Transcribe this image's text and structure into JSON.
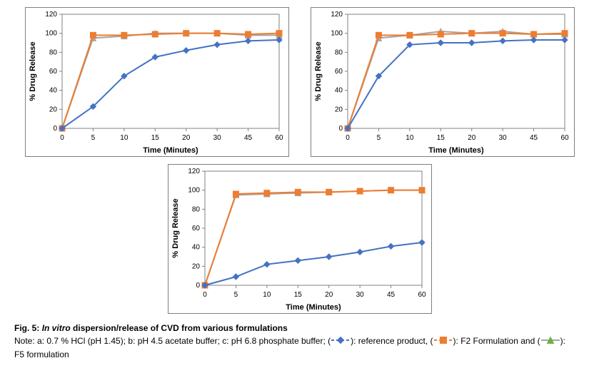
{
  "global": {
    "xlabel": "Time (Minutes)",
    "ylabel": "% Drug Release",
    "xlabel_fontsize": 11,
    "ylabel_fontsize": 11,
    "xlabel_fontweight": "bold",
    "ylabel_fontweight": "bold",
    "tick_fontsize": 10,
    "bg_color": "#ffffff",
    "plot_border_color": "#808080",
    "outer_border_color": "#7f7f7f",
    "grid_on": false,
    "x_ticks": [
      0,
      5,
      10,
      15,
      20,
      30,
      45,
      60
    ],
    "y_ticks": [
      0,
      20,
      40,
      60,
      80,
      100,
      120
    ],
    "ylim": [
      0,
      120
    ],
    "xlim": [
      0,
      60
    ],
    "x_categorical": true,
    "series_colors": {
      "reference": "#4472c4",
      "f2": "#ed7d31",
      "f5": "#a5a5a5"
    },
    "marker_styles": {
      "reference": "diamond",
      "f2": "square",
      "f5": "triangle"
    },
    "marker_size": 8,
    "line_width": 2
  },
  "charts": [
    {
      "id": "a",
      "series": {
        "reference": {
          "x": [
            0,
            5,
            10,
            15,
            20,
            30,
            45,
            60
          ],
          "y": [
            0,
            23,
            55,
            75,
            82,
            88,
            92,
            93
          ]
        },
        "f2": {
          "x": [
            0,
            5,
            10,
            15,
            20,
            30,
            45,
            60
          ],
          "y": [
            0,
            98,
            98,
            99,
            100,
            100,
            99,
            100
          ]
        },
        "f5": {
          "x": [
            0,
            5,
            10,
            15,
            20,
            30,
            45,
            60
          ],
          "y": [
            0,
            95,
            97,
            100,
            100,
            100,
            98,
            98
          ]
        }
      }
    },
    {
      "id": "b",
      "series": {
        "reference": {
          "x": [
            0,
            5,
            10,
            15,
            20,
            30,
            45,
            60
          ],
          "y": [
            0,
            55,
            88,
            90,
            90,
            92,
            93,
            93
          ]
        },
        "f2": {
          "x": [
            0,
            5,
            10,
            15,
            20,
            30,
            45,
            60
          ],
          "y": [
            0,
            98,
            98,
            99,
            100,
            100,
            99,
            100
          ]
        },
        "f5": {
          "x": [
            0,
            5,
            10,
            15,
            20,
            30,
            45,
            60
          ],
          "y": [
            0,
            95,
            98,
            102,
            100,
            102,
            99,
            99
          ]
        }
      }
    },
    {
      "id": "c",
      "series": {
        "reference": {
          "x": [
            0,
            5,
            10,
            15,
            20,
            30,
            45,
            60
          ],
          "y": [
            0,
            9,
            22,
            26,
            30,
            35,
            41,
            45
          ]
        },
        "f2": {
          "x": [
            0,
            5,
            10,
            15,
            20,
            30,
            45,
            60
          ],
          "y": [
            0,
            96,
            97,
            98,
            98,
            99,
            100,
            100
          ]
        },
        "f5": {
          "x": [
            0,
            5,
            10,
            15,
            20,
            30,
            45,
            60
          ],
          "y": [
            0,
            95,
            96,
            97,
            98,
            99,
            100,
            100
          ]
        }
      }
    }
  ],
  "caption": {
    "fig_label": "Fig. 5:",
    "italic_part": "In vitro",
    "title_rest": " dispersion/release of CVD from various formulations",
    "note_prefix": "Note: a: 0.7 % HCl (pH 1.45); b: pH 4.5 acetate buffer; c: pH 6.8 phosphate buffer; (",
    "ref_seg": "): reference product, (",
    "f2_seg": "): F2 Formulation and (",
    "f5_seg": "):",
    "note_line2": "F5 formulation"
  },
  "legend_markers": {
    "reference": {
      "line_color": "#4472c4",
      "marker": "diamond",
      "marker_color": "#4472c4",
      "dash": true
    },
    "f2": {
      "line_color": "#ed7d31",
      "marker": "square",
      "marker_color": "#ed7d31",
      "dash": true
    },
    "f5": {
      "line_color": "#a5a5a5",
      "marker": "triangle",
      "marker_color": "#70ad47",
      "dash": false
    }
  }
}
